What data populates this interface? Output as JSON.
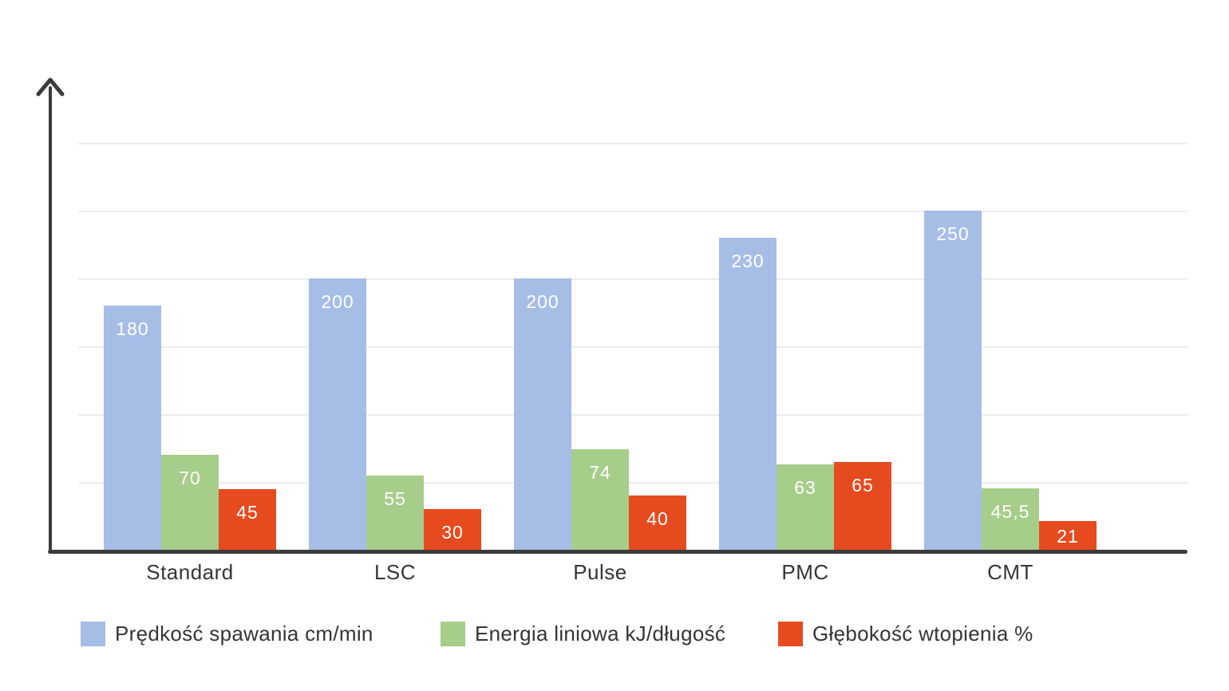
{
  "chart_data": {
    "type": "bar",
    "title": "",
    "xlabel": "",
    "ylabel": "",
    "categories": [
      "Standard",
      "LSC",
      "Pulse",
      "PMC",
      "CMT"
    ],
    "series": [
      {
        "name": "Prędkość spawania cm/min",
        "color": "#a6bde6",
        "values": [
          180,
          200,
          200,
          230,
          250
        ],
        "labels": [
          "180",
          "200",
          "200",
          "230",
          "250"
        ]
      },
      {
        "name": "Energia liniowa kJ/długość",
        "color": "#a6cd89",
        "values": [
          70,
          55,
          74,
          63,
          45.5
        ],
        "labels": [
          "70",
          "55",
          "74",
          "63",
          "45,5"
        ]
      },
      {
        "name": "Głębokość wtopienia %",
        "color": "#e64a1f",
        "values": [
          45,
          30,
          40,
          65,
          21
        ],
        "labels": [
          "45",
          "30",
          "40",
          "65",
          "21"
        ]
      }
    ],
    "ylim": [
      0,
      340
    ],
    "gridline_values": [
      50,
      100,
      150,
      200,
      250,
      300
    ],
    "grid": true,
    "legend_position": "bottom",
    "value_labels": "inside-top",
    "decimal_separator": ","
  },
  "colors": {
    "background": "#ffffff",
    "axis": "#3b3b3d",
    "gridline": "#ededed",
    "category_text": "#333538",
    "legend_text": "#333538",
    "bar_label_text": "#ffffff"
  }
}
